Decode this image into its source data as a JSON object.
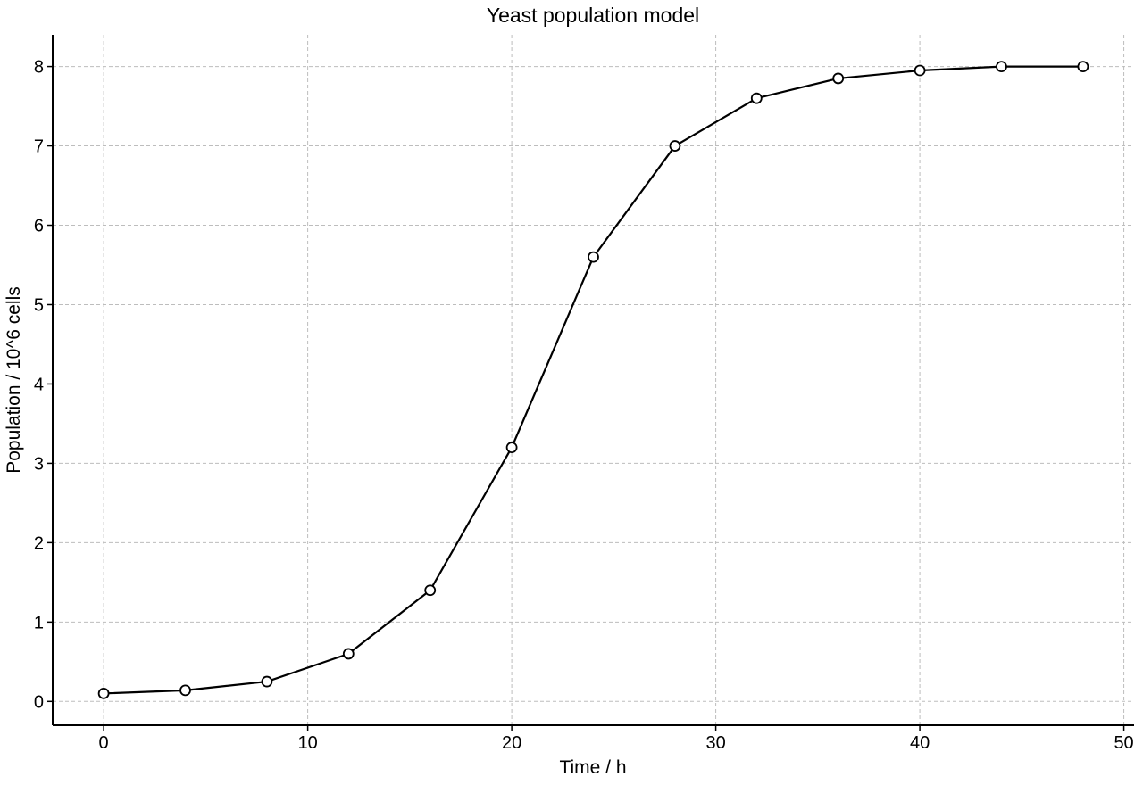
{
  "chart_data": {
    "type": "line",
    "title": "Yeast population model",
    "xlabel": "Time / h",
    "ylabel": "Population / 10^6 cells",
    "xlim": [
      -2.5,
      50.5
    ],
    "ylim": [
      -0.3,
      8.4
    ],
    "xticks": [
      0,
      10,
      20,
      30,
      40,
      50
    ],
    "yticks": [
      0,
      1,
      2,
      3,
      4,
      5,
      6,
      7,
      8
    ],
    "grid": true,
    "x": [
      0,
      4,
      8,
      12,
      16,
      20,
      24,
      28,
      32,
      36,
      40,
      44,
      48
    ],
    "series": [
      {
        "values": [
          0.1,
          0.14,
          0.25,
          0.6,
          1.4,
          3.2,
          5.6,
          7.0,
          7.6,
          7.85,
          7.95,
          8.0,
          8.0
        ],
        "color": "#000000",
        "marker": "open-circle"
      }
    ]
  }
}
